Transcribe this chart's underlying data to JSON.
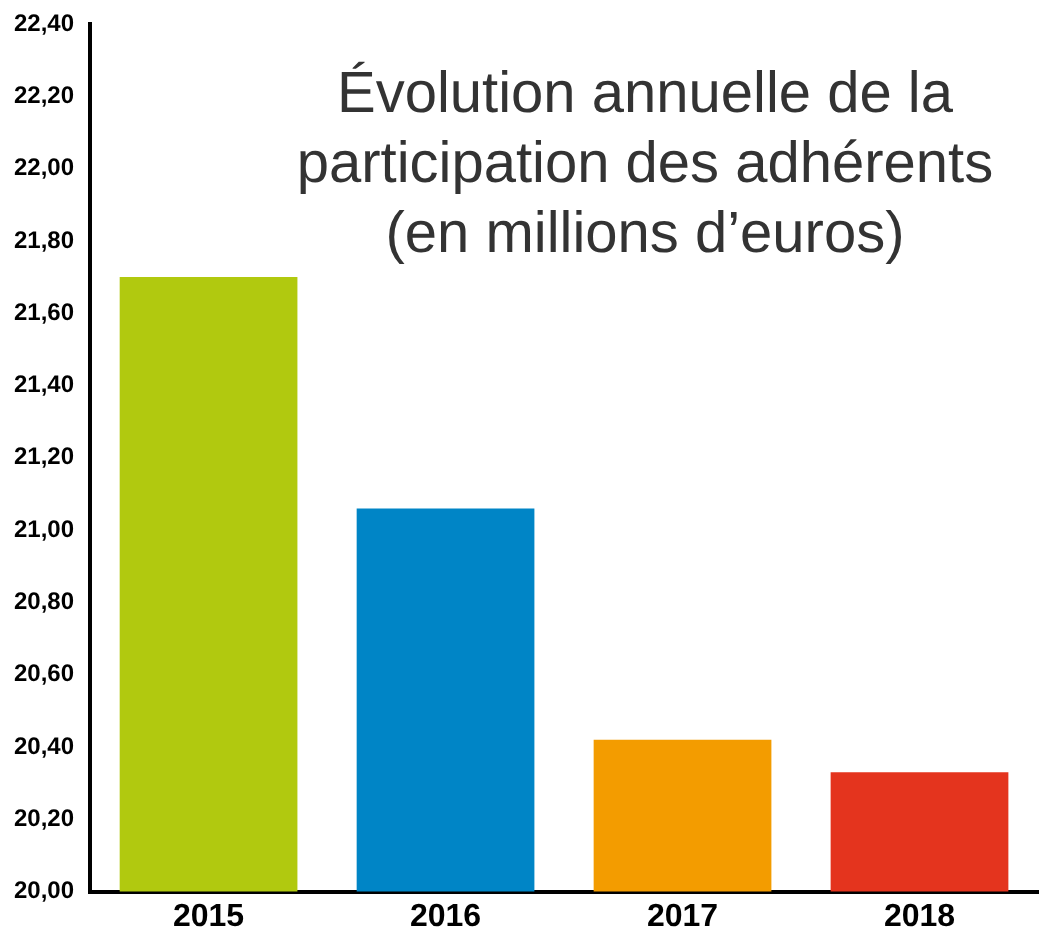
{
  "chart_data": {
    "type": "bar",
    "title": "Évolution annuelle de la participation des adhérents (en millions d’euros)",
    "categories": [
      "2015",
      "2016",
      "2017",
      "2018"
    ],
    "values": [
      21.7,
      21.06,
      20.42,
      20.33
    ],
    "colors": [
      "#b1c90f",
      "#0085c6",
      "#f39c00",
      "#e4341e"
    ],
    "ylim": [
      20,
      22.4
    ],
    "yticks": [
      {
        "value": 20,
        "label": "20,00"
      },
      {
        "value": 20.2,
        "label": "20,20"
      },
      {
        "value": 20.4,
        "label": "20,40"
      },
      {
        "value": 20.6,
        "label": "20,60"
      },
      {
        "value": 20.8,
        "label": "20,80"
      },
      {
        "value": 21,
        "label": "21,00"
      },
      {
        "value": 21.2,
        "label": "21,20"
      },
      {
        "value": 21.4,
        "label": "21,40"
      },
      {
        "value": 21.6,
        "label": "21,60"
      },
      {
        "value": 21.8,
        "label": "21,80"
      },
      {
        "value": 22,
        "label": "22,00"
      },
      {
        "value": 22.2,
        "label": "22,20"
      },
      {
        "value": 22.4,
        "label": "22,40"
      }
    ],
    "grid": false,
    "legend": false
  }
}
